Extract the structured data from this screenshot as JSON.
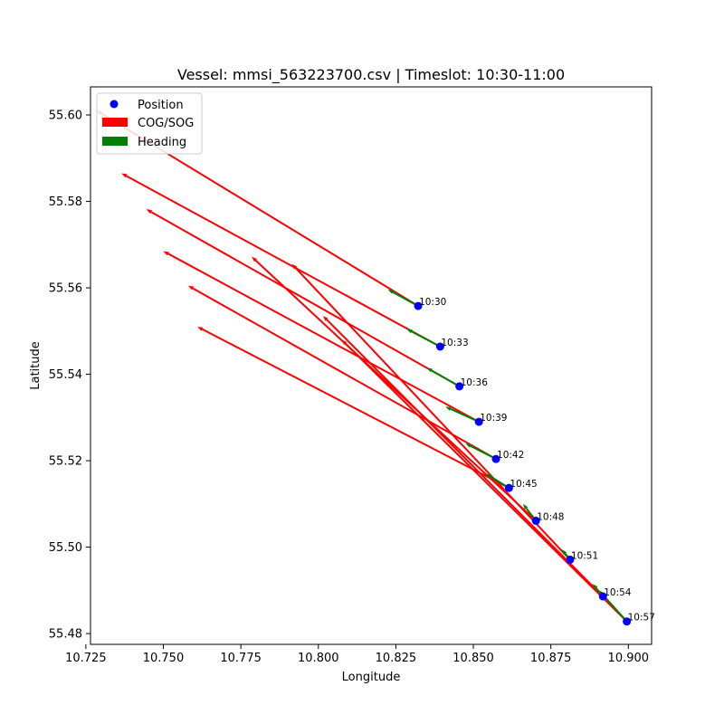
{
  "chart_data": {
    "type": "scatter",
    "title": "Vessel: mmsi_563223700.csv | Timeslot: 10:30-11:00",
    "xlabel": "Longitude",
    "ylabel": "Latitude",
    "xlim": [
      10.7265,
      10.9075
    ],
    "ylim": [
      55.4775,
      55.6065
    ],
    "x_ticks": [
      10.725,
      10.75,
      10.775,
      10.8,
      10.825,
      10.85,
      10.875,
      10.9
    ],
    "x_tick_labels": [
      "10.725",
      "10.750",
      "10.775",
      "10.800",
      "10.825",
      "10.850",
      "10.875",
      "10.900"
    ],
    "y_ticks": [
      55.48,
      55.5,
      55.52,
      55.54,
      55.56,
      55.58,
      55.6
    ],
    "y_tick_labels": [
      "55.48",
      "55.50",
      "55.52",
      "55.54",
      "55.56",
      "55.58",
      "55.60"
    ],
    "grid": false,
    "legend": {
      "placement": "top-left",
      "entries": [
        {
          "label": "Position",
          "color": "#0000ff",
          "marker": "circle"
        },
        {
          "label": "COG/SOG",
          "color": "#ff0000",
          "marker": "patch"
        },
        {
          "label": "Heading",
          "color": "#008000",
          "marker": "patch"
        }
      ]
    },
    "colors": {
      "position": "#0000ff",
      "cog": "#ff0000",
      "heading": "#008000"
    },
    "points": [
      {
        "time": "10:30",
        "lon": 10.8322,
        "lat": 55.5558,
        "cog_end": [
          10.7285,
          55.601
        ],
        "heading_end": [
          10.8225,
          55.5596
        ]
      },
      {
        "time": "10:33",
        "lon": 10.8393,
        "lat": 55.5464,
        "cog_end": [
          10.7365,
          55.5865
        ],
        "heading_end": [
          10.8285,
          55.5505
        ]
      },
      {
        "time": "10:36",
        "lon": 10.8455,
        "lat": 55.5372,
        "cog_end": [
          10.7445,
          55.5782
        ],
        "heading_end": [
          10.835,
          55.5415
        ]
      },
      {
        "time": "10:39",
        "lon": 10.8518,
        "lat": 55.529,
        "cog_end": [
          10.75,
          55.5685
        ],
        "heading_end": [
          10.841,
          55.5325
        ]
      },
      {
        "time": "10:42",
        "lon": 10.8573,
        "lat": 55.5204,
        "cog_end": [
          10.758,
          55.5605
        ],
        "heading_end": [
          10.8475,
          55.524
        ]
      },
      {
        "time": "10:45",
        "lon": 10.8615,
        "lat": 55.5137,
        "cog_end": [
          10.761,
          55.551
        ],
        "heading_end": [
          10.854,
          55.517
        ]
      },
      {
        "time": "10:48",
        "lon": 10.8702,
        "lat": 55.5061,
        "cog_end": [
          10.7785,
          55.5672
        ],
        "heading_end": [
          10.866,
          55.51
        ]
      },
      {
        "time": "10:51",
        "lon": 10.8812,
        "lat": 55.4971,
        "cog_end": [
          10.7915,
          55.5655
        ],
        "heading_end": [
          10.8785,
          55.4995
        ]
      },
      {
        "time": "10:54",
        "lon": 10.8918,
        "lat": 55.4886,
        "cog_end": [
          10.8015,
          55.5535
        ],
        "heading_end": [
          10.8885,
          55.4915
        ]
      },
      {
        "time": "10:57",
        "lon": 10.8995,
        "lat": 55.4828,
        "cog_end": [
          10.8075,
          55.548
        ],
        "heading_end": [
          10.8905,
          55.49
        ]
      }
    ]
  }
}
